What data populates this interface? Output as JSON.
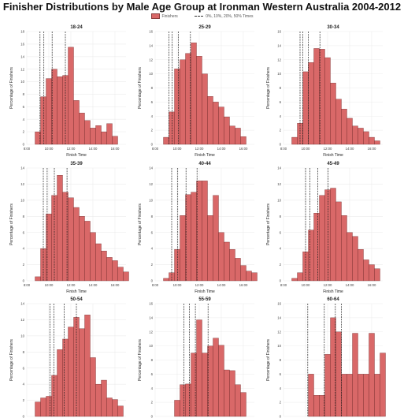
{
  "title": "Finisher Distributions by Male Age Group at Ironman Western Australia 2004-2012",
  "legend": {
    "bars": "Finishers",
    "lines": "0%, 10%, 20%, 50% Times"
  },
  "colors": {
    "bar_fill": "#d96868",
    "bar_stroke": "#6b2a2a",
    "line": "#222222",
    "grid": "#ececec"
  },
  "chart_data": [
    {
      "type": "bar",
      "title": "18-24",
      "xlabel": "Finish Time",
      "ylabel": "Percentage of Finishers",
      "xlim": [
        8,
        17
      ],
      "ylim": [
        0,
        18
      ],
      "xticks": [
        "8:00",
        "10:00",
        "12:00",
        "14:00",
        "16:00"
      ],
      "yticks": [
        0,
        2,
        4,
        6,
        8,
        10,
        12,
        14,
        16,
        18
      ],
      "bin_start": 8.75,
      "bin_width": 0.5,
      "values": [
        2.0,
        7.6,
        10.5,
        12.0,
        10.8,
        11.0,
        15.5,
        7.0,
        5.0,
        3.8,
        2.6,
        3.0,
        2.0,
        3.3,
        1.3
      ],
      "markers": [
        9.2,
        9.55,
        10.3,
        11.5
      ]
    },
    {
      "type": "bar",
      "title": "25-29",
      "xlabel": "Finish Time",
      "ylabel": "Percentage of Finishers",
      "xlim": [
        8,
        17
      ],
      "ylim": [
        0,
        16
      ],
      "xticks": [
        "8:00",
        "10:00",
        "12:00",
        "14:00",
        "16:00"
      ],
      "yticks": [
        0,
        2,
        4,
        6,
        8,
        10,
        12,
        14,
        16
      ],
      "bin_start": 8.75,
      "bin_width": 0.5,
      "values": [
        1.0,
        4.6,
        10.7,
        12.0,
        12.9,
        14.4,
        12.5,
        10.0,
        6.8,
        6.0,
        5.3,
        3.9,
        2.6,
        2.3,
        1.1
      ],
      "markers": [
        9.25,
        9.55,
        10.1,
        11.2
      ]
    },
    {
      "type": "bar",
      "title": "30-34",
      "xlabel": "Finish Time",
      "ylabel": "Percentage of Finishers",
      "xlim": [
        8,
        17
      ],
      "ylim": [
        0,
        16
      ],
      "xticks": [
        "8:00",
        "10:00",
        "12:00",
        "14:00",
        "16:00"
      ],
      "yticks": [
        0,
        2,
        4,
        6,
        8,
        10,
        12,
        14,
        16
      ],
      "bin_start": 8.75,
      "bin_width": 0.5,
      "values": [
        1.0,
        3.0,
        10.3,
        11.6,
        13.6,
        13.5,
        12.3,
        8.7,
        6.4,
        5.0,
        3.7,
        2.6,
        2.3,
        1.8,
        1.0,
        0.5
      ],
      "markers": [
        9.5,
        9.75,
        10.25,
        11.3
      ]
    },
    {
      "type": "bar",
      "title": "35-39",
      "xlabel": "Finish Time",
      "ylabel": "Percentage of Finishers",
      "xlim": [
        8,
        17
      ],
      "ylim": [
        0,
        14
      ],
      "xticks": [
        "8:00",
        "10:00",
        "12:00",
        "14:00",
        "16:00"
      ],
      "yticks": [
        0,
        2,
        4,
        6,
        8,
        10,
        12,
        14
      ],
      "bin_start": 8.75,
      "bin_width": 0.5,
      "values": [
        0.5,
        4.0,
        8.3,
        10.6,
        13.1,
        11.0,
        10.3,
        9.1,
        8.0,
        7.4,
        6.0,
        4.6,
        3.7,
        2.9,
        2.5,
        1.7,
        1.1
      ],
      "markers": [
        9.5,
        9.85,
        10.5,
        11.65
      ]
    },
    {
      "type": "bar",
      "title": "40-44",
      "xlabel": "Finish Time",
      "ylabel": "Percentage of Finishers",
      "xlim": [
        8,
        17
      ],
      "ylim": [
        0,
        14
      ],
      "xticks": [
        "8:00",
        "10:00",
        "12:00",
        "14:00",
        "16:00"
      ],
      "yticks": [
        0,
        2,
        4,
        6,
        8,
        10,
        12,
        14
      ],
      "bin_start": 8.75,
      "bin_width": 0.5,
      "values": [
        0.3,
        1.0,
        3.9,
        8.1,
        10.7,
        11.0,
        12.4,
        12.4,
        8.1,
        10.6,
        6.0,
        4.8,
        3.9,
        2.8,
        1.9,
        1.2,
        1.0
      ],
      "markers": [
        9.5,
        10.05,
        10.8,
        11.8
      ]
    },
    {
      "type": "bar",
      "title": "45-49",
      "xlabel": "Finish Time",
      "ylabel": "Percentage of Finishers",
      "xlim": [
        8,
        17
      ],
      "ylim": [
        0,
        14
      ],
      "xticks": [
        "8:00",
        "10:00",
        "12:00",
        "14:00",
        "16:00"
      ],
      "yticks": [
        0,
        2,
        4,
        6,
        8,
        10,
        12,
        14
      ],
      "bin_start": 8.75,
      "bin_width": 0.5,
      "values": [
        0.3,
        1.0,
        3.6,
        6.3,
        8.4,
        10.6,
        11.3,
        11.5,
        9.8,
        8.1,
        6.0,
        5.5,
        3.9,
        2.6,
        2.0,
        1.5
      ],
      "markers": [
        10.0,
        10.4,
        11.1,
        12.05
      ]
    },
    {
      "type": "bar",
      "title": "50-54",
      "xlabel": "Finish Time",
      "ylabel": "Percentage of Finishers",
      "xlim": [
        8,
        17
      ],
      "ylim": [
        0,
        14
      ],
      "xticks": [
        "8:00",
        "10:00",
        "12:00",
        "14:00",
        "16:00"
      ],
      "yticks": [
        0,
        2,
        4,
        6,
        8,
        10,
        12,
        14
      ],
      "bin_start": 8.75,
      "bin_width": 0.5,
      "values": [
        1.8,
        2.3,
        2.5,
        5.1,
        8.3,
        9.6,
        11.1,
        12.3,
        10.9,
        12.6,
        7.3,
        4.0,
        4.5,
        2.3,
        2.1,
        1.3
      ],
      "markers": [
        10.1,
        10.45,
        11.4,
        12.5
      ]
    },
    {
      "type": "bar",
      "title": "55-59",
      "xlabel": "Finish Time",
      "ylabel": "Percentage of Finishers",
      "xlim": [
        8,
        17
      ],
      "ylim": [
        0,
        16
      ],
      "xticks": [
        "8:00",
        "10:00",
        "12:00",
        "14:00",
        "16:00"
      ],
      "yticks": [
        0,
        2,
        4,
        6,
        8,
        10,
        12,
        14,
        16
      ],
      "bin_start": 9.75,
      "bin_width": 0.5,
      "values": [
        2.3,
        4.5,
        4.6,
        9.0,
        13.7,
        9.0,
        10.0,
        11.1,
        10.1,
        6.6,
        6.5,
        4.5,
        3.4
      ],
      "markers": [
        10.6,
        11.1,
        11.65,
        12.8
      ]
    },
    {
      "type": "bar",
      "title": "60-64",
      "xlabel": "Finish Time",
      "ylabel": "Percentage of Finishers",
      "xlim": [
        8,
        17
      ],
      "ylim": [
        0,
        16
      ],
      "xticks": [
        "8:00",
        "10:00",
        "12:00",
        "14:00",
        "16:00"
      ],
      "yticks": [
        0,
        2,
        4,
        6,
        8,
        10,
        12,
        14,
        16
      ],
      "bin_start": 9.75,
      "bin_width": 0.5,
      "values": [
        0,
        6.0,
        3.0,
        3.0,
        8.8,
        14.0,
        12.0,
        6.0,
        6.0,
        11.8,
        6.0,
        6.0,
        11.8,
        6.0,
        9.0
      ],
      "markers": [
        10.2,
        11.7,
        12.7,
        13.25
      ]
    }
  ]
}
